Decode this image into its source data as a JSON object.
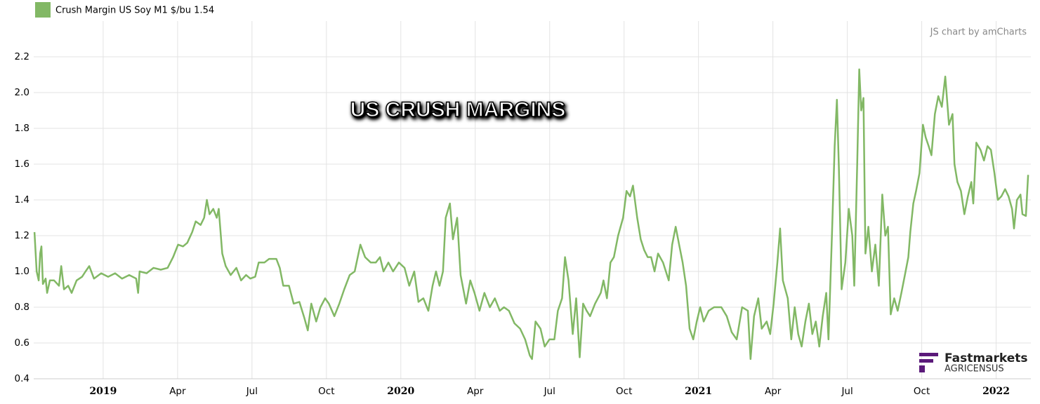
{
  "chart_data": {
    "type": "line",
    "title": "US CRUSH MARGINS",
    "credit": "JS chart by amCharts",
    "brand": {
      "name": "Fastmarkets",
      "sub": "AGRICENSUS"
    },
    "grid": true,
    "xlim": [
      -2.8,
      37.4
    ],
    "xticks": [
      {
        "value": 0,
        "label": "2019"
      },
      {
        "value": 3,
        "label": "Apr"
      },
      {
        "value": 6,
        "label": "Jul"
      },
      {
        "value": 9,
        "label": "Oct"
      },
      {
        "value": 12,
        "label": "2020"
      },
      {
        "value": 15,
        "label": "Apr"
      },
      {
        "value": 18,
        "label": "Jul"
      },
      {
        "value": 21,
        "label": "Oct"
      },
      {
        "value": 24,
        "label": "2021"
      },
      {
        "value": 27,
        "label": "Apr"
      },
      {
        "value": 30,
        "label": "Jul"
      },
      {
        "value": 33,
        "label": "Oct"
      },
      {
        "value": 36,
        "label": "2022"
      }
    ],
    "ylim": [
      0.4,
      2.4
    ],
    "yticks": [
      0.4,
      0.6,
      0.8,
      {
        "value": 1,
        "label": "1.0"
      },
      1.2,
      1.4,
      1.6,
      1.8,
      {
        "value": 2,
        "label": "2.0"
      },
      2.2
    ],
    "x": [
      -2.77,
      -2.68,
      -2.6,
      -2.54,
      -2.49,
      -2.43,
      -2.32,
      -2.26,
      -2.15,
      -1.98,
      -1.78,
      -1.69,
      -1.58,
      -1.41,
      -1.27,
      -1.07,
      -0.85,
      -0.71,
      -0.56,
      -0.37,
      -0.08,
      0.2,
      0.48,
      0.76,
      1.05,
      1.33,
      1.41,
      1.47,
      1.75,
      2.03,
      2.32,
      2.6,
      2.82,
      3.02,
      3.22,
      3.39,
      3.59,
      3.73,
      3.93,
      4.07,
      4.18,
      4.29,
      4.44,
      4.58,
      4.66,
      4.8,
      4.94,
      5.14,
      5.37,
      5.56,
      5.76,
      5.93,
      6.13,
      6.27,
      6.5,
      6.69,
      6.98,
      7.12,
      7.26,
      7.49,
      7.68,
      7.91,
      8.11,
      8.25,
      8.39,
      8.59,
      8.76,
      8.95,
      9.1,
      9.32,
      9.52,
      9.72,
      9.94,
      10.14,
      10.37,
      10.56,
      10.79,
      10.99,
      11.16,
      11.3,
      11.5,
      11.69,
      11.92,
      12.15,
      12.34,
      12.54,
      12.71,
      12.91,
      13.11,
      13.28,
      13.42,
      13.56,
      13.7,
      13.81,
      13.98,
      14.1,
      14.27,
      14.41,
      14.52,
      14.63,
      14.8,
      14.97,
      15.17,
      15.37,
      15.59,
      15.79,
      15.99,
      16.16,
      16.36,
      16.58,
      16.81,
      17.01,
      17.2,
      17.29,
      17.43,
      17.63,
      17.8,
      17.99,
      18.19,
      18.33,
      18.5,
      18.62,
      18.76,
      18.93,
      19.07,
      19.21,
      19.35,
      19.49,
      19.63,
      19.83,
      20.06,
      20.17,
      20.31,
      20.45,
      20.59,
      20.76,
      20.96,
      21.1,
      21.24,
      21.36,
      21.53,
      21.67,
      21.81,
      21.95,
      22.09,
      22.23,
      22.37,
      22.57,
      22.8,
      22.94,
      23.08,
      23.22,
      23.36,
      23.5,
      23.64,
      23.79,
      23.93,
      24.07,
      24.21,
      24.41,
      24.63,
      24.92,
      25.14,
      25.34,
      25.54,
      25.76,
      25.99,
      26.1,
      26.24,
      26.41,
      26.55,
      26.75,
      26.89,
      27.03,
      27.18,
      27.29,
      27.4,
      27.6,
      27.74,
      27.88,
      28.02,
      28.16,
      28.31,
      28.45,
      28.59,
      28.73,
      28.87,
      29.01,
      29.15,
      29.24,
      29.38,
      29.49,
      29.58,
      29.66,
      29.77,
      29.92,
      30.06,
      30.2,
      30.28,
      30.4,
      30.48,
      30.56,
      30.65,
      30.73,
      30.85,
      30.99,
      31.13,
      31.27,
      31.41,
      31.53,
      31.64,
      31.75,
      31.89,
      32.03,
      32.18,
      32.32,
      32.46,
      32.54,
      32.66,
      32.77,
      32.91,
      33.05,
      33.16,
      33.28,
      33.39,
      33.53,
      33.67,
      33.81,
      33.95,
      34.1,
      34.24,
      34.32,
      34.44,
      34.58,
      34.72,
      34.86,
      35.0,
      35.08,
      35.2,
      35.37,
      35.51,
      35.65,
      35.79,
      35.93,
      36.07,
      36.21,
      36.36,
      36.5,
      36.64,
      36.72,
      36.84,
      36.98,
      37.06,
      37.2,
      37.29
    ],
    "series": [
      {
        "name": "Crush Margin US Soy M1 $/bu 1.54",
        "color": "#82b865",
        "values": [
          1.22,
          1.0,
          0.95,
          1.1,
          1.14,
          0.93,
          0.96,
          0.88,
          0.95,
          0.95,
          0.92,
          1.03,
          0.9,
          0.92,
          0.88,
          0.95,
          0.97,
          1.0,
          1.03,
          0.96,
          0.99,
          0.97,
          0.99,
          0.96,
          0.98,
          0.96,
          0.88,
          1.0,
          0.99,
          1.02,
          1.01,
          1.02,
          1.08,
          1.15,
          1.14,
          1.16,
          1.22,
          1.28,
          1.26,
          1.3,
          1.4,
          1.32,
          1.35,
          1.3,
          1.35,
          1.1,
          1.03,
          0.98,
          1.02,
          0.95,
          0.98,
          0.96,
          0.97,
          1.05,
          1.05,
          1.07,
          1.07,
          1.02,
          0.92,
          0.92,
          0.82,
          0.83,
          0.74,
          0.67,
          0.82,
          0.72,
          0.8,
          0.85,
          0.82,
          0.75,
          0.82,
          0.9,
          0.98,
          1.0,
          1.15,
          1.08,
          1.05,
          1.05,
          1.08,
          1.0,
          1.05,
          1.0,
          1.05,
          1.02,
          0.92,
          1.0,
          0.83,
          0.85,
          0.78,
          0.92,
          1.0,
          0.92,
          1.0,
          1.3,
          1.38,
          1.18,
          1.3,
          0.98,
          0.9,
          0.82,
          0.95,
          0.88,
          0.78,
          0.88,
          0.8,
          0.85,
          0.78,
          0.8,
          0.78,
          0.71,
          0.68,
          0.62,
          0.53,
          0.51,
          0.72,
          0.68,
          0.58,
          0.62,
          0.62,
          0.78,
          0.85,
          1.08,
          0.95,
          0.65,
          0.85,
          0.52,
          0.82,
          0.78,
          0.75,
          0.82,
          0.88,
          0.95,
          0.85,
          1.05,
          1.08,
          1.2,
          1.3,
          1.45,
          1.42,
          1.48,
          1.3,
          1.18,
          1.12,
          1.08,
          1.08,
          1.0,
          1.1,
          1.05,
          0.95,
          1.15,
          1.25,
          1.15,
          1.05,
          0.92,
          0.68,
          0.62,
          0.72,
          0.8,
          0.72,
          0.78,
          0.8,
          0.8,
          0.75,
          0.66,
          0.62,
          0.8,
          0.78,
          0.51,
          0.75,
          0.85,
          0.68,
          0.72,
          0.65,
          0.82,
          1.05,
          1.24,
          0.95,
          0.85,
          0.62,
          0.8,
          0.65,
          0.58,
          0.72,
          0.82,
          0.65,
          0.72,
          0.58,
          0.75,
          0.88,
          0.62,
          1.2,
          1.7,
          1.96,
          1.58,
          0.9,
          1.05,
          1.35,
          1.2,
          0.92,
          1.6,
          2.13,
          1.9,
          1.97,
          1.1,
          1.25,
          1.0,
          1.15,
          0.92,
          1.43,
          1.2,
          1.25,
          0.76,
          0.85,
          0.78,
          0.88,
          0.98,
          1.08,
          1.22,
          1.38,
          1.45,
          1.55,
          1.82,
          1.75,
          1.7,
          1.65,
          1.88,
          1.98,
          1.92,
          2.09,
          1.82,
          1.88,
          1.6,
          1.5,
          1.45,
          1.32,
          1.42,
          1.5,
          1.38,
          1.72,
          1.68,
          1.62,
          1.7,
          1.68,
          1.55,
          1.4,
          1.42,
          1.46,
          1.42,
          1.35,
          1.24,
          1.4,
          1.43,
          1.32,
          1.31,
          1.54
        ]
      }
    ]
  }
}
